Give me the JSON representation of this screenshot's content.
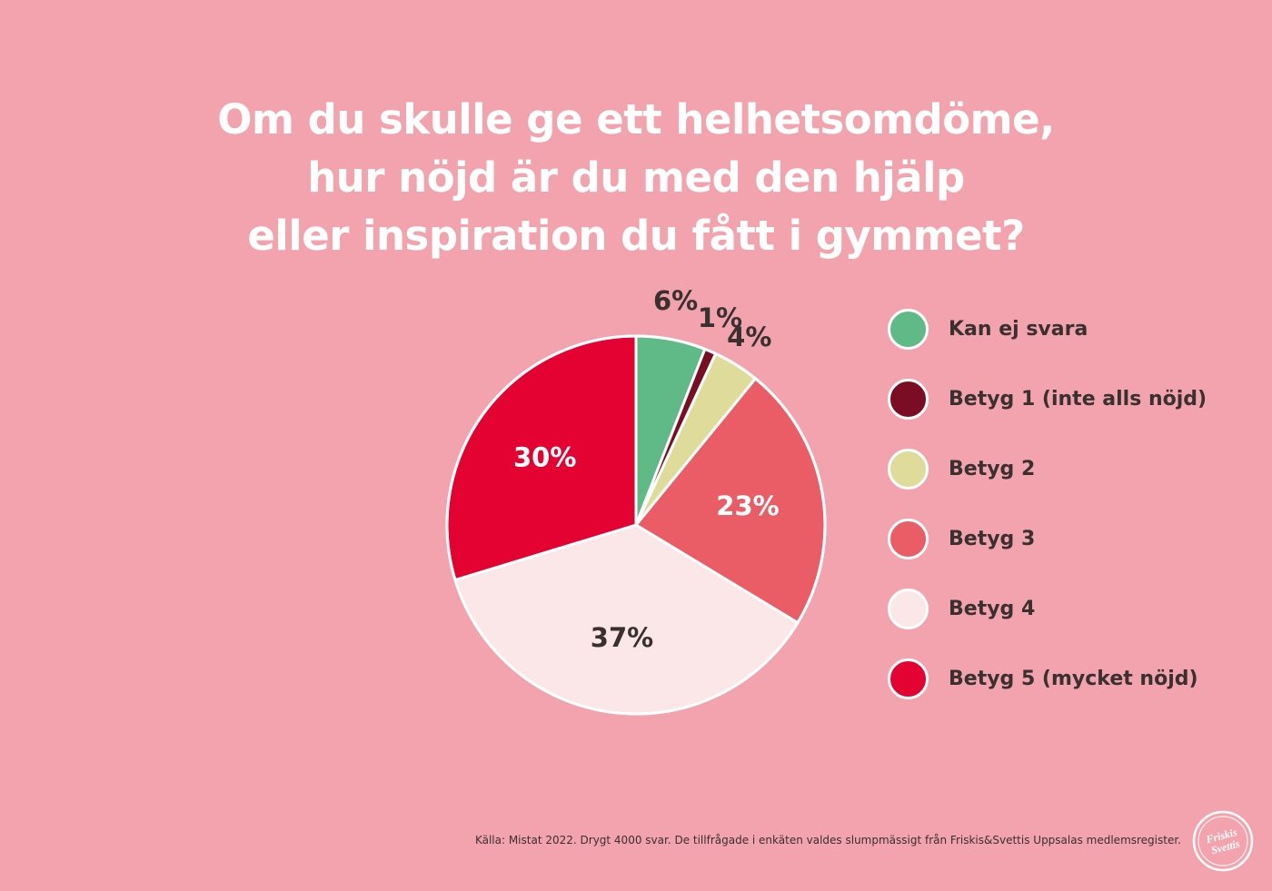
{
  "title_lines": [
    "Om du skulle ge ett helhetsomdöme,",
    "hur nöjd är du med den hjälp",
    "eller inspiration du fått i gymmet?"
  ],
  "chart_data": {
    "type": "pie",
    "title": "Om du skulle ge ett helhetsomdöme, hur nöjd är du med den hjälp eller inspiration du fått i gymmet?",
    "categories": [
      "Kan ej svara",
      "Betyg 1 (inte alls nöjd)",
      "Betyg 2",
      "Betyg 3",
      "Betyg 4",
      "Betyg 5 (mycket nöjd)"
    ],
    "values": [
      6,
      1,
      4,
      23,
      37,
      30
    ],
    "labels": [
      "6%",
      "1%",
      "4%",
      "23%",
      "37%",
      "30%"
    ],
    "colors": [
      "#60ba88",
      "#7a0d24",
      "#dfdb9a",
      "#ea5c66",
      "#fbe6e8",
      "#e30232"
    ],
    "label_colors": [
      "#3a3030",
      "#3a3030",
      "#3a3030",
      "#ffffff",
      "#3a3030",
      "#ffffff"
    ],
    "legend_position": "right"
  },
  "source": "Källa: Mistat 2022. Drygt 4000 svar. De tillfrågade i enkäten valdes slumpmässigt från Friskis&Svettis Uppsalas medlemsregister.",
  "logo_text": [
    "Friskis",
    "Svettis"
  ]
}
